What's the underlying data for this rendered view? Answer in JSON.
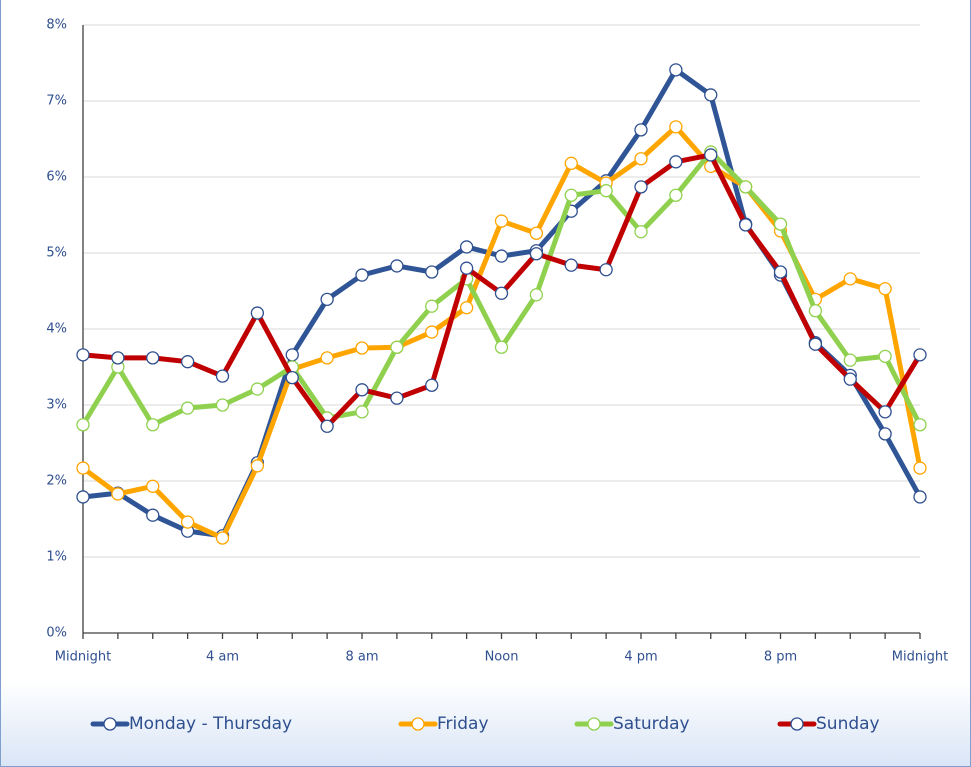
{
  "chart_data": {
    "type": "line",
    "x": [
      0,
      1,
      2,
      3,
      4,
      5,
      6,
      7,
      8,
      9,
      10,
      11,
      12,
      13,
      14,
      15,
      16,
      17,
      18,
      19,
      20,
      21,
      22,
      23,
      24
    ],
    "xlim": [
      0,
      24
    ],
    "xticks": [
      {
        "value": 0,
        "label": "Midnight"
      },
      {
        "value": 1,
        "label": null
      },
      {
        "value": 2,
        "label": null
      },
      {
        "value": 3,
        "label": null
      },
      {
        "value": 4,
        "label": "4 am"
      },
      {
        "value": 5,
        "label": null
      },
      {
        "value": 6,
        "label": null
      },
      {
        "value": 7,
        "label": null
      },
      {
        "value": 8,
        "label": "8 am"
      },
      {
        "value": 9,
        "label": null
      },
      {
        "value": 10,
        "label": null
      },
      {
        "value": 11,
        "label": null
      },
      {
        "value": 12,
        "label": "Noon"
      },
      {
        "value": 13,
        "label": null
      },
      {
        "value": 14,
        "label": null
      },
      {
        "value": 15,
        "label": null
      },
      {
        "value": 16,
        "label": "4 pm"
      },
      {
        "value": 17,
        "label": null
      },
      {
        "value": 18,
        "label": null
      },
      {
        "value": 19,
        "label": null
      },
      {
        "value": 20,
        "label": "8 pm"
      },
      {
        "value": 21,
        "label": null
      },
      {
        "value": 22,
        "label": null
      },
      {
        "value": 23,
        "label": null
      },
      {
        "value": 24,
        "label": "Midnight"
      }
    ],
    "ylim": [
      0,
      8
    ],
    "yticks": [
      {
        "value": 0,
        "label": "0%"
      },
      {
        "value": 1,
        "label": "1%"
      },
      {
        "value": 2,
        "label": "2%"
      },
      {
        "value": 3,
        "label": "3%"
      },
      {
        "value": 4,
        "label": "4%"
      },
      {
        "value": 5,
        "label": "5%"
      },
      {
        "value": 6,
        "label": "6%"
      },
      {
        "value": 7,
        "label": "7%"
      },
      {
        "value": 8,
        "label": "8%"
      }
    ],
    "grid": true,
    "legend": "bottom",
    "series": [
      {
        "name": "Monday - Thursday",
        "color": "#2f5597",
        "marker_color": "#2f4f8f",
        "values": [
          1.79,
          1.84,
          1.55,
          1.34,
          1.28,
          2.24,
          3.66,
          4.39,
          4.71,
          4.83,
          4.75,
          5.08,
          4.96,
          5.03,
          5.55,
          5.95,
          6.62,
          7.41,
          7.08,
          5.38,
          4.71,
          3.82,
          3.39,
          2.62,
          1.79
        ]
      },
      {
        "name": "Friday",
        "color": "#ffa500",
        "marker_color": "#ffa500",
        "values": [
          2.17,
          1.83,
          1.93,
          1.46,
          1.25,
          2.2,
          3.47,
          3.62,
          3.75,
          3.76,
          3.96,
          4.28,
          5.42,
          5.26,
          6.18,
          5.92,
          6.24,
          6.66,
          6.14,
          5.87,
          5.29,
          4.39,
          4.66,
          4.53,
          2.17
        ]
      },
      {
        "name": "Saturday",
        "color": "#8fd14f",
        "marker_color": "#8fd14f",
        "values": [
          2.74,
          3.5,
          2.74,
          2.96,
          3.0,
          3.21,
          3.5,
          2.83,
          2.91,
          3.76,
          4.3,
          4.66,
          3.76,
          4.45,
          5.76,
          5.82,
          5.28,
          5.76,
          6.33,
          5.87,
          5.38,
          4.24,
          3.59,
          3.64,
          2.74
        ]
      },
      {
        "name": "Sunday",
        "color": "#c00000",
        "marker_color": "#2f4f8f",
        "values": [
          3.66,
          3.62,
          3.62,
          3.57,
          3.38,
          4.21,
          3.36,
          2.72,
          3.2,
          3.09,
          3.26,
          4.8,
          4.47,
          4.99,
          4.84,
          4.78,
          5.87,
          6.2,
          6.29,
          5.37,
          4.75,
          3.8,
          3.34,
          2.91,
          3.66
        ]
      }
    ]
  }
}
